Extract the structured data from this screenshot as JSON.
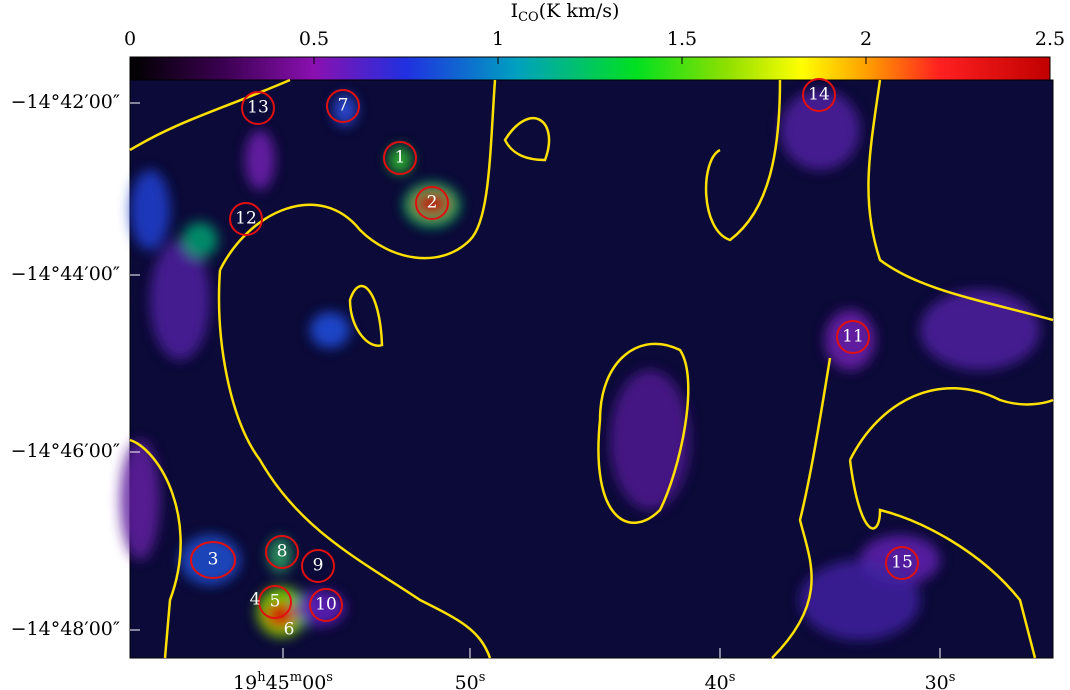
{
  "colorbar": {
    "label": {
      "main": "I",
      "sub": "CO",
      "unit": "(K km/s)"
    },
    "lim": [
      0,
      2.5
    ],
    "ticks": [
      0,
      0.5,
      1,
      1.5,
      2,
      2.5
    ]
  },
  "y_axis": {
    "labels": [
      "−14°42′00″",
      "−14°44′00″",
      "−14°46′00″",
      "−14°48′00″"
    ]
  },
  "x_axis": {
    "labels": [
      [
        {
          "t": "19"
        },
        {
          "s": "h"
        },
        {
          "t": "45"
        },
        {
          "s": "m"
        },
        {
          "t": "00"
        },
        {
          "s": "s"
        }
      ],
      [
        {
          "t": "50"
        },
        {
          "s": "s"
        }
      ],
      [
        {
          "t": "40"
        },
        {
          "s": "s"
        }
      ],
      [
        {
          "t": "30"
        },
        {
          "s": "s"
        }
      ]
    ]
  },
  "clumps": [
    "1",
    "2",
    "3",
    "4",
    "5",
    "6",
    "7",
    "8",
    "9",
    "10",
    "11",
    "12",
    "13",
    "14",
    "15"
  ]
}
